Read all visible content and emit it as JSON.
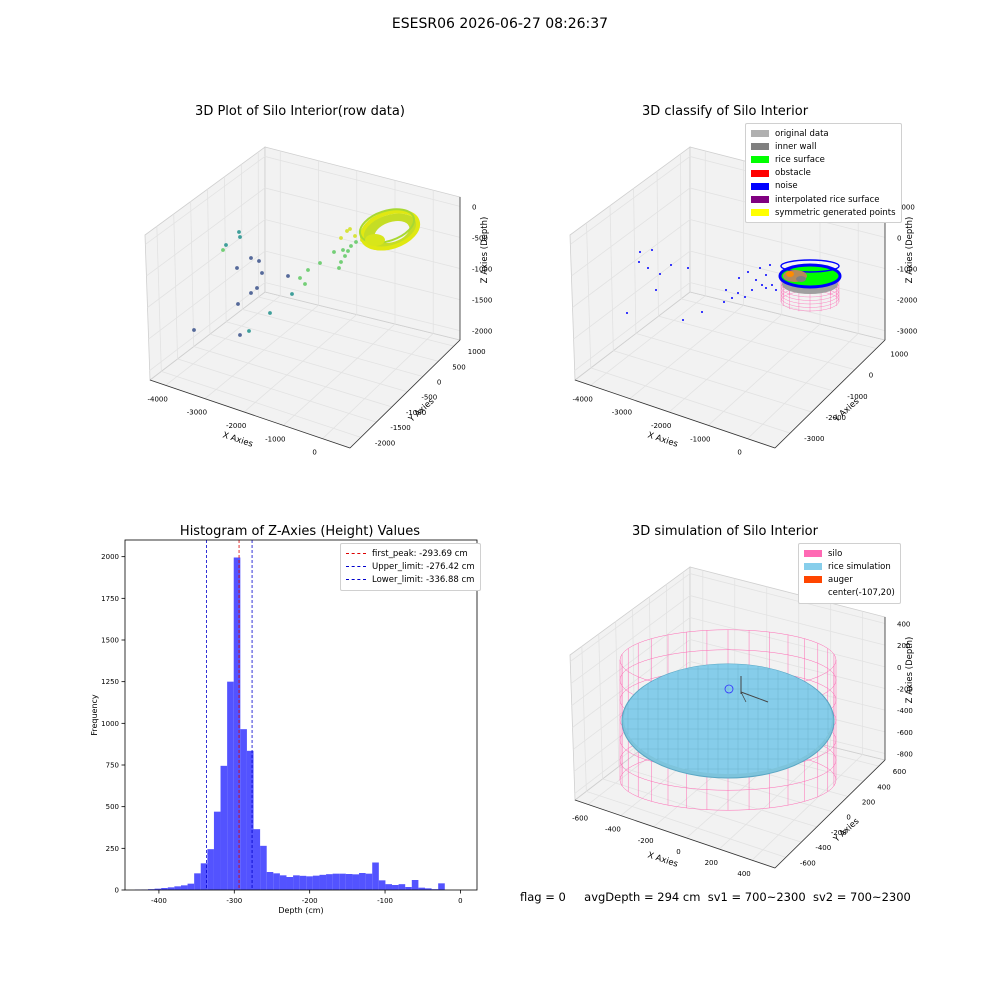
{
  "suptitle": "ESESR06 2026-06-27 08:26:37",
  "footer": {
    "flag": "flag = 0",
    "avg": "avgDepth = 294 cm",
    "sv1": "sv1 = 700~2300",
    "sv2": "sv2 = 700~2300"
  },
  "chart_data": [
    {
      "type": "scatter",
      "title": "3D Plot of Silo Interior(row data)",
      "xlabel": "X Axies",
      "ylabel": "Y Axies",
      "zlabel": "Z Axies (Depth)",
      "x_ticks": [
        "-4000",
        "-3000",
        "-2000",
        "-1000",
        "0"
      ],
      "y_ticks": [
        "1000",
        "500",
        "0",
        "-500",
        "-1000",
        "-1500",
        "-2000"
      ],
      "z_ticks": [
        "0",
        "-500",
        "-1000",
        "-1500",
        "-2000"
      ],
      "colors": {
        "near": "#3b528b",
        "mid": "#21918c",
        "far": "#5ec962",
        "surface": "#d2e21b"
      }
    },
    {
      "type": "scatter",
      "title": "3D classify of Silo Interior",
      "xlabel": "X Axies",
      "ylabel": "Y Axies",
      "zlabel": "Z Axies (Depth)",
      "x_ticks": [
        "-4000",
        "-3000",
        "-2000",
        "-1000",
        "0"
      ],
      "y_ticks": [
        "1000",
        "0",
        "-1000",
        "-2000",
        "-3000"
      ],
      "z_ticks": [
        "1000",
        "0",
        "-1000",
        "-2000",
        "-3000"
      ],
      "legend": [
        {
          "label": "original data",
          "color": "#b0b0b0"
        },
        {
          "label": "inner wall",
          "color": "#808080"
        },
        {
          "label": "rice surface",
          "color": "#00ff00"
        },
        {
          "label": "obstacle",
          "color": "#ff0000"
        },
        {
          "label": "noise",
          "color": "#0000ff"
        },
        {
          "label": "interpolated rice surface",
          "color": "#800080"
        },
        {
          "label": "symmetric generated points",
          "color": "#ffff00"
        }
      ]
    },
    {
      "type": "bar",
      "title": "Histogram of Z-Axies (Height) Values",
      "xlabel": "Depth (cm)",
      "ylabel": "Frequency",
      "xlim": [
        -445,
        22
      ],
      "ylim": [
        0,
        2100
      ],
      "x_ticks": [
        -400,
        -300,
        -200,
        -100,
        0
      ],
      "y_ticks": [
        0,
        250,
        500,
        750,
        1000,
        1250,
        1500,
        1750,
        2000
      ],
      "bin_start": -432,
      "bin_width": 8.75,
      "values": [
        2,
        3,
        5,
        8,
        12,
        16,
        22,
        28,
        38,
        100,
        160,
        245,
        470,
        745,
        1250,
        1995,
        965,
        835,
        365,
        265,
        108,
        100,
        88,
        78,
        88,
        85,
        82,
        86,
        91,
        95,
        98,
        98,
        96,
        94,
        102,
        98,
        165,
        58,
        35,
        30,
        35,
        18,
        60,
        14,
        10,
        5,
        40
      ],
      "bar_color": "#4040ff",
      "vlines": [
        {
          "label": "first_peak: -293.69 cm",
          "x": -293.69,
          "color": "#dd0000"
        },
        {
          "label": "Upper_limit: -276.42 cm",
          "x": -276.42,
          "color": "#0000cc"
        },
        {
          "label": "Lower_limit: -336.88 cm",
          "x": -336.88,
          "color": "#0000cc"
        }
      ]
    },
    {
      "type": "scatter",
      "title": "3D simulation of Silo Interior",
      "xlabel": "X Axies",
      "ylabel": "Y Axies",
      "zlabel": "Z Axies (Depth)",
      "x_ticks": [
        "-600",
        "-400",
        "-200",
        "0",
        "200",
        "400"
      ],
      "y_ticks": [
        "600",
        "400",
        "200",
        "0",
        "-200",
        "-400",
        "-600"
      ],
      "z_ticks": [
        "400",
        "200",
        "0",
        "-200",
        "-400",
        "-600",
        "-800"
      ],
      "legend": [
        {
          "label": "silo",
          "color": "#ff69b4"
        },
        {
          "label": "rice simulation",
          "color": "#87ceeb"
        },
        {
          "label": "auger",
          "color": "#ff4500"
        },
        {
          "label": "center(-107,20)",
          "color": ""
        }
      ]
    }
  ]
}
